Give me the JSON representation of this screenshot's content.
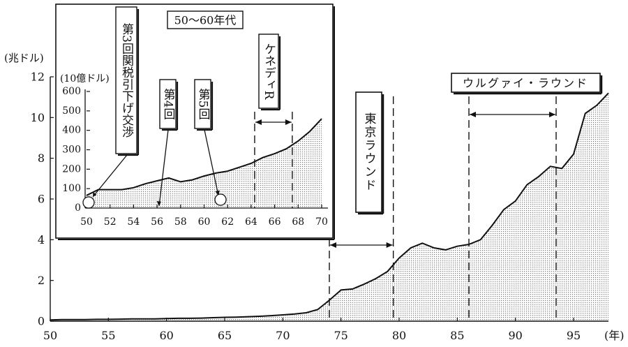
{
  "chart_data": [
    {
      "type": "area",
      "ylabel": "(兆ドル)",
      "xlabel": "(年)",
      "xlim": [
        50,
        98
      ],
      "ylim": [
        0,
        12
      ],
      "xticks": [
        50,
        55,
        60,
        65,
        70,
        75,
        80,
        85,
        90,
        95
      ],
      "yticks": [
        0,
        2,
        4,
        6,
        8,
        10,
        12
      ],
      "x": [
        50,
        51,
        52,
        53,
        54,
        55,
        56,
        57,
        58,
        59,
        60,
        61,
        62,
        63,
        64,
        65,
        66,
        67,
        68,
        69,
        70,
        71,
        72,
        73,
        74,
        75,
        76,
        77,
        78,
        79,
        80,
        81,
        82,
        83,
        84,
        85,
        86,
        87,
        88,
        89,
        90,
        91,
        92,
        93,
        94,
        95,
        96,
        97,
        98
      ],
      "y": [
        0.06,
        0.08,
        0.08,
        0.08,
        0.09,
        0.09,
        0.1,
        0.11,
        0.11,
        0.11,
        0.13,
        0.14,
        0.14,
        0.15,
        0.17,
        0.19,
        0.2,
        0.22,
        0.24,
        0.27,
        0.31,
        0.35,
        0.41,
        0.57,
        1.03,
        1.53,
        1.58,
        1.82,
        2.09,
        2.44,
        3.1,
        3.6,
        3.83,
        3.6,
        3.5,
        3.68,
        3.77,
        4.0,
        4.7,
        5.48,
        5.9,
        6.7,
        7.1,
        7.6,
        7.5,
        8.2,
        10.2,
        10.6,
        11.2
      ],
      "annotations": [
        {
          "text": "東京ラウンド",
          "from": 74,
          "to": 79.5
        },
        {
          "text": "ウルグァイ・ラウンド",
          "from": 86,
          "to": 93.5
        }
      ]
    },
    {
      "type": "area",
      "title": "50〜60年代",
      "ylabel": "(10億ドル)",
      "xlim": [
        50,
        70
      ],
      "ylim": [
        0,
        600
      ],
      "xticks": [
        50,
        52,
        54,
        56,
        58,
        60,
        62,
        64,
        66,
        68,
        70
      ],
      "yticks": [
        0,
        100,
        200,
        300,
        400,
        500,
        600
      ],
      "x": [
        50,
        51,
        52,
        53,
        54,
        55,
        56,
        57,
        58,
        59,
        60,
        61,
        62,
        63,
        64,
        65,
        66,
        67,
        68,
        69,
        70
      ],
      "y": [
        65,
        95,
        95,
        95,
        105,
        125,
        140,
        155,
        135,
        145,
        165,
        180,
        190,
        210,
        230,
        260,
        280,
        305,
        345,
        395,
        460
      ],
      "annotations": [
        {
          "text": "第3回関税引下げ交渉",
          "x": 50.3
        },
        {
          "text": "第4回",
          "x": 56
        },
        {
          "text": "第5回",
          "x": 61.3
        },
        {
          "text": "ケネディR",
          "from": 64.3,
          "to": 67.5
        }
      ]
    }
  ]
}
